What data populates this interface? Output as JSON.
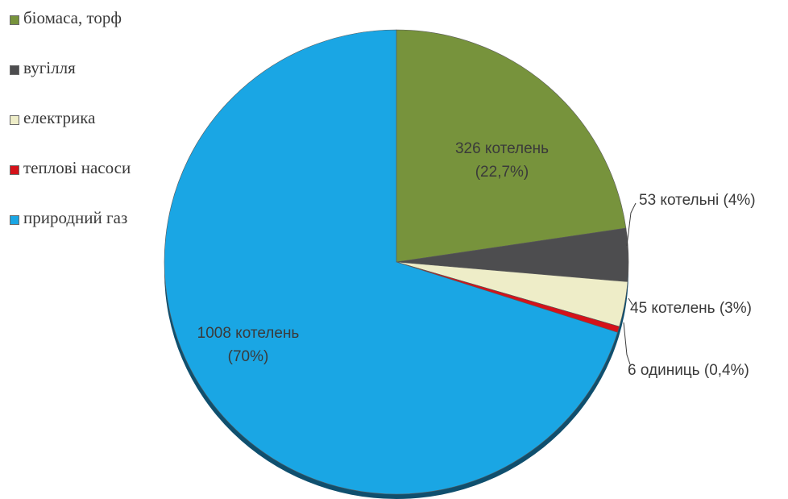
{
  "chart_data": {
    "type": "pie",
    "legend_position": "top-left",
    "slices": [
      {
        "name": "біомаса, торф",
        "value": 326,
        "percent": 22.7,
        "color": "#77933c",
        "label_lines": [
          "326 котелень",
          "(22,7%)"
        ]
      },
      {
        "name": "вугілля",
        "value": 53,
        "percent": 4,
        "color": "#4d4d4f",
        "label_lines": [
          "53 котельні (4%)"
        ]
      },
      {
        "name": "електрика",
        "value": 45,
        "percent": 3,
        "color": "#eeedc8",
        "label_lines": [
          "45 котелень (3%)"
        ]
      },
      {
        "name": "теплові насоси",
        "value": 6,
        "percent": 0.4,
        "color": "#d5121a",
        "label_lines": [
          "6 одиниць (0,4%)"
        ]
      },
      {
        "name": "природний газ",
        "value": 1008,
        "percent": 70,
        "color": "#1aa6e4",
        "label_lines": [
          "1008 котелень",
          "(70%)"
        ]
      }
    ]
  }
}
